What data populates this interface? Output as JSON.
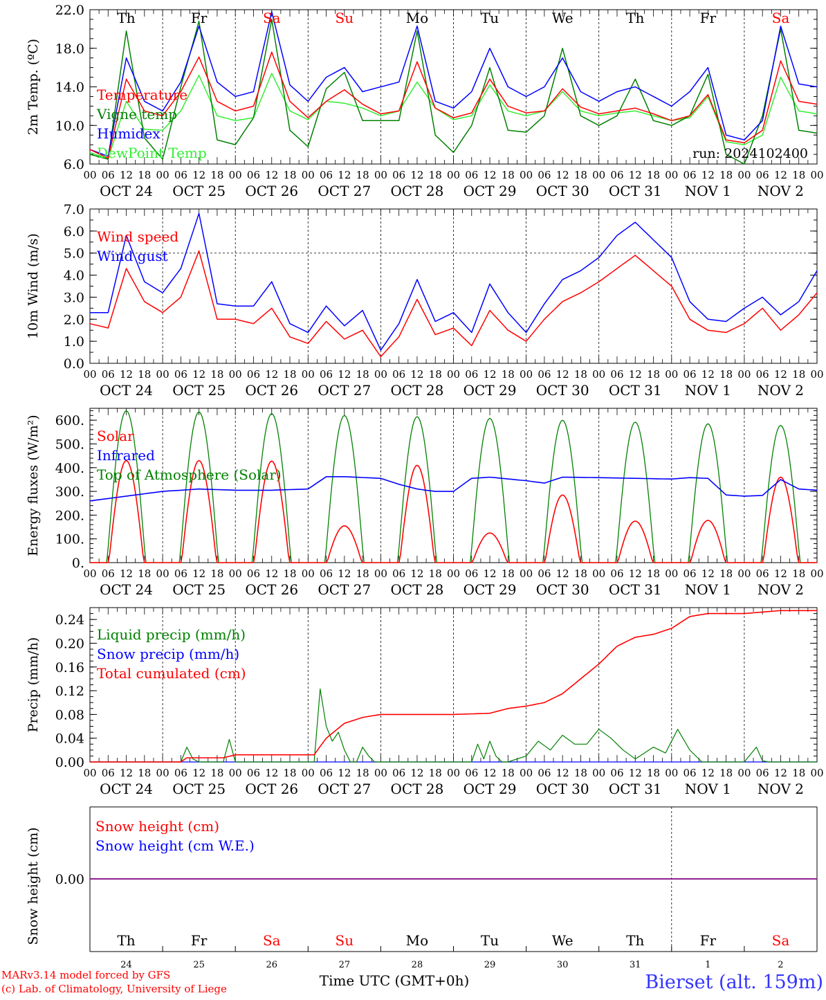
{
  "run_label": "run: 2024102400",
  "hour_ticks": [
    "00",
    "06",
    "12",
    "18"
  ],
  "end_tick": "00",
  "date_labels": [
    "OCT 24",
    "OCT 25",
    "OCT 26",
    "OCT 27",
    "OCT 28",
    "OCT 29",
    "OCT 30",
    "OCT 31",
    "NOV  1",
    "NOV  2"
  ],
  "weekdays": [
    {
      "label": "Th",
      "color": "#000000"
    },
    {
      "label": "Fr",
      "color": "#000000"
    },
    {
      "label": "Sa",
      "color": "#ff0000"
    },
    {
      "label": "Su",
      "color": "#ff0000"
    },
    {
      "label": "Mo",
      "color": "#000000"
    },
    {
      "label": "Tu",
      "color": "#000000"
    },
    {
      "label": "We",
      "color": "#000000"
    },
    {
      "label": "Th",
      "color": "#000000"
    },
    {
      "label": "Fr",
      "color": "#000000"
    },
    {
      "label": "Sa",
      "color": "#ff0000"
    }
  ],
  "day_numbers": [
    "24",
    "25",
    "26",
    "27",
    "28",
    "29",
    "30",
    "31",
    "1",
    "2"
  ],
  "footer": {
    "model_line": "MARv3.14 model forced by GFS",
    "lab_line": "(c) Lab. of Climatology, University of Liege",
    "time_label": "Time UTC (GMT+0h)",
    "station": "Bierset (alt. 159m)"
  },
  "colors": {
    "red": "#ff0000",
    "green": "#008000",
    "blue": "#0000ff",
    "lightgreen": "#33ee33",
    "purple": "#800080"
  },
  "chart_data": [
    {
      "type": "line",
      "ylabel": "2m Temp. (ºC)",
      "ylim": [
        6,
        22
      ],
      "yticks": [
        "6.0",
        "10.0",
        "14.0",
        "18.0",
        "22.0"
      ],
      "legend": [
        {
          "name": "Temperature",
          "color": "#ff0000"
        },
        {
          "name": "Vigne temp",
          "color": "#008000"
        },
        {
          "name": "Humidex",
          "color": "#0000ff"
        },
        {
          "name": "DewPoint Temp",
          "color": "#33ee33"
        }
      ],
      "x_hours": [
        0,
        6,
        12,
        18,
        24,
        30,
        36,
        42,
        48,
        54,
        60,
        66,
        72,
        78,
        84,
        90,
        96,
        102,
        108,
        114,
        120,
        126,
        132,
        138,
        144,
        150,
        156,
        162,
        168,
        174,
        180,
        186,
        192,
        198,
        204,
        210,
        216,
        222,
        228,
        234,
        240
      ],
      "series": [
        {
          "name": "Temperature",
          "color": "#ff0000",
          "values": [
            7.5,
            6.6,
            14.8,
            11.5,
            11.0,
            13.5,
            17.1,
            12.5,
            11.5,
            12.0,
            17.6,
            12.5,
            10.8,
            12.5,
            13.7,
            12.2,
            11.2,
            11.5,
            16.6,
            11.8,
            10.8,
            11.3,
            14.8,
            12.0,
            11.3,
            11.5,
            13.8,
            11.9,
            11.2,
            11.5,
            11.8,
            11.2,
            10.5,
            11.0,
            13.2,
            8.5,
            8.2,
            9.5,
            16.7,
            12.5,
            12.2
          ]
        },
        {
          "name": "Vigne temp",
          "color": "#008000",
          "values": [
            7.0,
            6.5,
            19.8,
            8.7,
            6.5,
            14.0,
            20.8,
            8.5,
            8.0,
            10.8,
            21.0,
            9.5,
            7.8,
            13.8,
            15.5,
            10.5,
            10.5,
            10.5,
            19.8,
            9.0,
            7.2,
            10.0,
            16.0,
            9.5,
            9.3,
            11.0,
            18.0,
            11.0,
            10.0,
            11.0,
            14.8,
            10.5,
            10.0,
            11.0,
            15.3,
            7.0,
            6.0,
            11.0,
            20.0,
            9.5,
            9.2
          ]
        },
        {
          "name": "Humidex",
          "color": "#0000ff",
          "values": [
            7.5,
            6.8,
            17.0,
            12.5,
            11.5,
            14.5,
            20.3,
            14.5,
            13.0,
            13.5,
            21.8,
            14.2,
            12.5,
            15.0,
            16.0,
            13.5,
            14.0,
            14.5,
            20.3,
            12.5,
            11.8,
            13.5,
            18.0,
            14.0,
            13.0,
            14.0,
            17.0,
            13.5,
            12.5,
            13.5,
            14.0,
            13.0,
            12.0,
            13.5,
            16.0,
            9.0,
            8.5,
            10.5,
            20.3,
            14.3,
            14.0
          ]
        },
        {
          "name": "DewPoint Temp",
          "color": "#33ee33",
          "values": [
            7.2,
            6.5,
            12.5,
            9.6,
            9.5,
            11.5,
            15.2,
            11.0,
            10.5,
            10.8,
            15.4,
            11.5,
            10.6,
            12.5,
            12.3,
            11.8,
            11.0,
            11.5,
            14.5,
            11.8,
            10.6,
            11.0,
            14.2,
            11.5,
            11.0,
            11.5,
            13.5,
            11.5,
            11.0,
            11.3,
            11.5,
            11.0,
            10.5,
            10.8,
            13.0,
            8.3,
            8.0,
            9.0,
            15.0,
            11.5,
            11.2
          ]
        }
      ]
    },
    {
      "type": "line",
      "ylabel": "10m Wind (m/s)",
      "ylim": [
        0,
        7
      ],
      "yticks": [
        "0.0",
        "1.0",
        "2.0",
        "3.0",
        "4.0",
        "5.0",
        "6.0",
        "7.0"
      ],
      "ref_line": 5.0,
      "legend": [
        {
          "name": "Wind speed",
          "color": "#ff0000"
        },
        {
          "name": "Wind gust",
          "color": "#0000ff"
        }
      ],
      "x_hours": [
        0,
        6,
        12,
        18,
        24,
        30,
        36,
        42,
        48,
        54,
        60,
        66,
        72,
        78,
        84,
        90,
        96,
        102,
        108,
        114,
        120,
        126,
        132,
        138,
        144,
        150,
        156,
        162,
        168,
        174,
        180,
        186,
        192,
        198,
        204,
        210,
        216,
        222,
        228,
        234,
        240
      ],
      "series": [
        {
          "name": "Wind speed",
          "color": "#ff0000",
          "values": [
            1.8,
            1.6,
            4.3,
            2.8,
            2.3,
            3.0,
            5.1,
            2.0,
            2.0,
            1.8,
            2.5,
            1.2,
            0.9,
            1.9,
            1.1,
            1.5,
            0.3,
            1.2,
            2.9,
            1.3,
            1.6,
            0.8,
            2.4,
            1.5,
            1.0,
            2.0,
            2.8,
            3.2,
            3.7,
            4.3,
            4.9,
            4.2,
            3.5,
            2.0,
            1.5,
            1.4,
            1.8,
            2.5,
            1.5,
            2.2,
            3.2
          ]
        },
        {
          "name": "Wind gust",
          "color": "#0000ff",
          "values": [
            2.3,
            2.3,
            5.8,
            3.7,
            3.2,
            4.3,
            6.8,
            2.7,
            2.6,
            2.6,
            3.7,
            1.8,
            1.4,
            2.6,
            1.7,
            2.4,
            0.6,
            1.8,
            3.8,
            1.9,
            2.3,
            1.4,
            3.6,
            2.3,
            1.4,
            2.7,
            3.8,
            4.2,
            4.8,
            5.8,
            6.4,
            5.6,
            4.8,
            2.8,
            2.0,
            1.9,
            2.5,
            3.0,
            2.2,
            2.8,
            4.2
          ]
        }
      ]
    },
    {
      "type": "line",
      "ylabel": "Energy fluxes (W/m²)",
      "ylim": [
        0,
        650
      ],
      "yticks": [
        "0.",
        "100.",
        "200.",
        "300.",
        "400.",
        "500.",
        "600."
      ],
      "legend": [
        {
          "name": "Solar",
          "color": "#ff0000"
        },
        {
          "name": "Infrared",
          "color": "#0000ff"
        },
        {
          "name": "Top of Atmosphere (Solar)",
          "color": "#008000"
        }
      ],
      "day_peaks": {
        "toa": [
          640,
          635,
          628,
          620,
          615,
          608,
          600,
          592,
          585,
          578
        ],
        "solar": [
          430,
          430,
          428,
          155,
          410,
          125,
          285,
          175,
          178,
          360
        ]
      },
      "infrared_x_hours": [
        0,
        12,
        24,
        36,
        48,
        60,
        72,
        78,
        84,
        96,
        102,
        108,
        114,
        120,
        126,
        132,
        144,
        150,
        156,
        168,
        180,
        192,
        198,
        204,
        210,
        216,
        222,
        228,
        234,
        240
      ],
      "infrared_values": [
        260,
        280,
        300,
        310,
        305,
        305,
        310,
        362,
        362,
        355,
        330,
        310,
        300,
        300,
        355,
        360,
        345,
        335,
        360,
        358,
        355,
        352,
        358,
        355,
        285,
        280,
        283,
        350,
        310,
        305
      ]
    },
    {
      "type": "line",
      "ylabel": "Precip (mm/h)",
      "ylim": [
        0,
        0.26
      ],
      "yticks": [
        "0.00",
        "0.04",
        "0.08",
        "0.12",
        "0.16",
        "0.20",
        "0.24"
      ],
      "legend": [
        {
          "name": "Liquid precip (mm/h)",
          "color": "#008000"
        },
        {
          "name": "Snow precip (mm/h)",
          "color": "#0000ff"
        },
        {
          "name": "Total cumulated (cm)",
          "color": "#ff0000"
        }
      ],
      "liquid_x_hours": [
        0,
        30,
        32,
        34,
        36,
        44,
        46,
        48,
        74,
        76,
        78,
        80,
        82,
        84,
        86,
        88,
        90,
        92,
        94,
        96,
        126,
        128,
        130,
        132,
        134,
        136,
        138,
        144,
        148,
        152,
        156,
        160,
        164,
        168,
        172,
        176,
        180,
        186,
        190,
        194,
        198,
        202,
        206,
        212,
        216,
        220,
        222,
        224,
        240
      ],
      "liquid_values": [
        0,
        0,
        0.025,
        0.005,
        0,
        0,
        0.038,
        0,
        0,
        0.123,
        0.06,
        0.035,
        0.05,
        0.02,
        0,
        0,
        0.025,
        0.01,
        0,
        0,
        0,
        0.03,
        0.005,
        0.035,
        0.01,
        0,
        0,
        0.01,
        0.035,
        0.02,
        0.045,
        0.03,
        0.03,
        0.055,
        0.04,
        0.02,
        0.005,
        0.025,
        0.015,
        0.055,
        0.02,
        0,
        0,
        0,
        0,
        0.025,
        0.002,
        0,
        0
      ],
      "snow_values": [
        0
      ],
      "cumulated_x_hours": [
        0,
        30,
        32,
        44,
        48,
        74,
        78,
        84,
        90,
        96,
        108,
        120,
        132,
        138,
        144,
        150,
        156,
        162,
        168,
        174,
        180,
        186,
        192,
        198,
        204,
        210,
        216,
        228,
        240
      ],
      "cumulated_values": [
        0,
        0,
        0.007,
        0.007,
        0.012,
        0.012,
        0.04,
        0.065,
        0.075,
        0.08,
        0.08,
        0.08,
        0.082,
        0.09,
        0.094,
        0.1,
        0.115,
        0.14,
        0.165,
        0.195,
        0.21,
        0.215,
        0.225,
        0.245,
        0.25,
        0.25,
        0.25,
        0.255,
        0.255
      ]
    },
    {
      "type": "line",
      "ylabel": "Snow height (cm)",
      "yticks": [
        "0.00"
      ],
      "legend": [
        {
          "name": "Snow height (cm)",
          "color": "#ff0000"
        },
        {
          "name": "Snow height (cm W.E.)",
          "color": "#0000ff"
        }
      ],
      "series": [
        {
          "name": "Snow height (cm)",
          "values": [
            0,
            0
          ]
        },
        {
          "name": "Snow height (cm W.E.)",
          "values": [
            0,
            0
          ]
        }
      ]
    }
  ]
}
